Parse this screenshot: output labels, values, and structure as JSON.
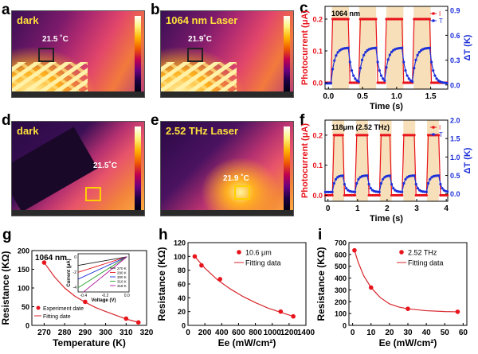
{
  "panels": {
    "a": {
      "letter": "a",
      "label": "dark",
      "temp": "21.5 ˚C"
    },
    "b": {
      "letter": "b",
      "label": "1064 nm Laser",
      "temp": "21.9˚C"
    },
    "d": {
      "letter": "d",
      "label": "dark",
      "temp": "21.5˚C"
    },
    "e": {
      "letter": "e",
      "label": "2.52 THz Laser",
      "temp": "21.9 ˚C"
    }
  },
  "colors": {
    "red": "#e8141c",
    "blue": "#1c2fd8",
    "band": "#f6dfb9",
    "fit": "#d8262c"
  },
  "chart_data": [
    {
      "id": "c",
      "type": "line",
      "letter": "c",
      "annotation": "1064 nm",
      "xlabel": "Time (s)",
      "ylabel": "Photocurrent (μA)",
      "y2label": "ΔT (K)",
      "xlim": [
        -0.05,
        1.75
      ],
      "ylim": [
        -0.02,
        0.24
      ],
      "y2lim": [
        -0.05,
        0.95
      ],
      "xticks": [
        "0.0",
        "0.5",
        "1.0",
        "1.5"
      ],
      "xtick_values": [
        0,
        0.5,
        1.0,
        1.5
      ],
      "yticks": [
        "0.0",
        "0.1",
        "0.2"
      ],
      "ytick_values": [
        0,
        0.1,
        0.2
      ],
      "y2ticks": [
        "0.0",
        "0.3",
        "0.6",
        "0.9"
      ],
      "y2tick_values": [
        0,
        0.3,
        0.6,
        0.9
      ],
      "on_intervals": [
        [
          0.05,
          0.3
        ],
        [
          0.45,
          0.7
        ],
        [
          0.85,
          1.1
        ],
        [
          1.25,
          1.5
        ]
      ],
      "i_on": 0.2,
      "i_off": 0.0,
      "t_on": 0.45,
      "t_off": 0.02,
      "tau": 0.05,
      "series": [
        {
          "name": "I",
          "axis": "left"
        },
        {
          "name": "T",
          "axis": "right"
        }
      ]
    },
    {
      "id": "f",
      "type": "line",
      "letter": "f",
      "annotation": "118μm (2.52 THz)",
      "xlabel": "Time (s)",
      "ylabel": "Photocurrent (μA)",
      "y2label": "ΔT (K)",
      "xlim": [
        -0.1,
        4.05
      ],
      "ylim": [
        -0.02,
        0.25
      ],
      "y2lim": [
        -0.2,
        2.0
      ],
      "xticks": [
        "0",
        "1",
        "2",
        "3",
        "4"
      ],
      "xtick_values": [
        0,
        1,
        2,
        3,
        4
      ],
      "yticks": [
        "0.0",
        "0.1",
        "0.2"
      ],
      "ytick_values": [
        0,
        0.1,
        0.2
      ],
      "y2ticks": [
        "0.0",
        "0.5",
        "1.0",
        "1.5",
        "2.0"
      ],
      "y2tick_values": [
        0,
        0.5,
        1.0,
        1.5,
        2.0
      ],
      "on_intervals": [
        [
          0.15,
          0.55
        ],
        [
          0.95,
          1.35
        ],
        [
          1.75,
          2.15
        ],
        [
          2.55,
          2.95
        ],
        [
          3.35,
          3.75
        ]
      ],
      "i_on": 0.2,
      "i_off": 0.0,
      "t_on": 0.5,
      "t_off": 0.05,
      "tau": 0.08,
      "series": [
        {
          "name": "I",
          "axis": "left"
        },
        {
          "name": "T",
          "axis": "right"
        }
      ]
    },
    {
      "id": "g",
      "type": "scatter",
      "letter": "g",
      "annotation": "1064 nm",
      "xlabel": "Temperature (K)",
      "ylabel": "Resistance (KΩ)",
      "xlim": [
        264,
        320
      ],
      "ylim": [
        0,
        200
      ],
      "xticks": [
        "270",
        "280",
        "290",
        "300",
        "310",
        "320"
      ],
      "xtick_values": [
        270,
        280,
        290,
        300,
        310,
        320
      ],
      "yticks": [
        "0",
        "50",
        "100",
        "150",
        "200"
      ],
      "ytick_values": [
        0,
        50,
        100,
        150,
        200
      ],
      "x": [
        270,
        290,
        310,
        316
      ],
      "y": [
        168,
        63,
        18,
        8
      ],
      "fit_x": [
        270,
        275,
        280,
        285,
        290,
        295,
        300,
        305,
        310,
        316
      ],
      "fit_y": [
        168,
        130,
        100,
        78,
        62,
        48,
        37,
        27,
        17,
        8
      ],
      "legend": [
        "Experiment date",
        "Fitting date"
      ],
      "inset": {
        "xlabel": "Voltage (V)",
        "ylabel": "Current (μA)",
        "xticks": [
          "-0.4",
          "-0.2",
          "0.0"
        ],
        "yticks": [
          "0",
          "-2",
          "-4"
        ],
        "series": [
          {
            "name": "270 K",
            "slope": 2.5,
            "color": "#1a1a1a"
          },
          {
            "name": "290 K",
            "slope": 4.5,
            "color": "#e8141c"
          },
          {
            "name": "300 K",
            "slope": 6.5,
            "color": "#1c2fd8"
          },
          {
            "name": "310 K",
            "slope": 9.0,
            "color": "#2aa02a"
          },
          {
            "name": "318 K",
            "slope": 11.5,
            "color": "#b5179e"
          }
        ]
      }
    },
    {
      "id": "h",
      "type": "scatter",
      "letter": "h",
      "xlabel": "Ee (mW/cm²)",
      "ylabel": "Resistance (KΩ)",
      "xlim": [
        0,
        1400
      ],
      "ylim": [
        0,
        120
      ],
      "xticks": [
        "0",
        "200",
        "400",
        "600",
        "800",
        "1000",
        "1200",
        "1400"
      ],
      "xtick_values": [
        0,
        200,
        400,
        600,
        800,
        1000,
        1200,
        1400
      ],
      "yticks": [
        "0",
        "20",
        "40",
        "60",
        "80",
        "100",
        "120"
      ],
      "ytick_values": [
        0,
        20,
        40,
        60,
        80,
        100,
        120
      ],
      "x": [
        80,
        160,
        380,
        1100,
        1250
      ],
      "y": [
        100,
        87,
        67,
        20,
        13
      ],
      "fit_x": [
        80,
        200,
        350,
        500,
        650,
        800,
        950,
        1100,
        1250
      ],
      "fit_y": [
        100,
        83,
        66,
        53,
        42,
        33,
        25,
        19,
        13
      ],
      "legend": [
        "10.6 μm",
        "Fitting data"
      ]
    },
    {
      "id": "i",
      "type": "scatter",
      "letter": "i",
      "xlabel": "Ee (mW/cm²)",
      "ylabel": "Resistance (KΩ)",
      "xlim": [
        -2,
        62
      ],
      "ylim": [
        0,
        700
      ],
      "xticks": [
        "0",
        "10",
        "20",
        "30",
        "40",
        "50",
        "60"
      ],
      "xtick_values": [
        0,
        10,
        20,
        30,
        40,
        50,
        60
      ],
      "yticks": [
        "0",
        "100",
        "200",
        "300",
        "400",
        "500",
        "600",
        "700"
      ],
      "ytick_values": [
        0,
        100,
        200,
        300,
        400,
        500,
        600,
        700
      ],
      "x": [
        1,
        10,
        30,
        57
      ],
      "y": [
        635,
        320,
        140,
        115
      ],
      "fit_x": [
        1,
        3,
        6,
        10,
        15,
        20,
        25,
        30,
        40,
        50,
        57
      ],
      "fit_y": [
        635,
        535,
        420,
        320,
        235,
        182,
        155,
        140,
        124,
        117,
        115
      ],
      "legend": [
        "2.52 THz",
        "Fitting data"
      ]
    }
  ]
}
